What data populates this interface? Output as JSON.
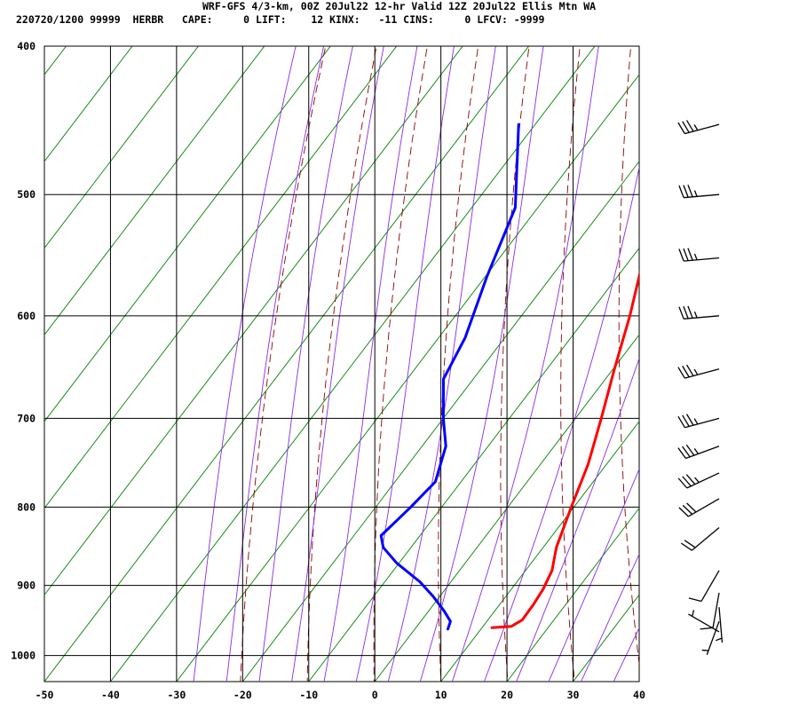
{
  "header": {
    "title": "WRF-GFS 4/3-km, 00Z 20Jul22 12-hr Valid 12Z 20Jul22 Ellis Mtn WA",
    "stats": "220720/1200 99999  HERBR   CAPE:     0 LIFT:    12 KINX:   -11 CINS:     0 LFCV: -9999"
  },
  "chart_data": {
    "type": "skew-t",
    "x_axis": {
      "ticks": [
        -50,
        -40,
        -30,
        -20,
        -10,
        0,
        10,
        20,
        30,
        40
      ],
      "range": [
        -50,
        40
      ]
    },
    "y_axis": {
      "ticks": [
        400,
        500,
        600,
        700,
        800,
        900,
        1000
      ],
      "range": [
        400,
        1040
      ],
      "scale": "log"
    },
    "grid": true,
    "colors": {
      "temperature": "#ff0000",
      "dewpoint": "#0000ff",
      "isotherm": "#008000",
      "dry_adiabat": "#8b0000",
      "moist_adiabat": "#8a2be2",
      "grid": "#000000"
    },
    "temperature": [
      {
        "p": 959,
        "t": 11.5
      },
      {
        "p": 957,
        "t": 14.3
      },
      {
        "p": 948,
        "t": 15.2
      },
      {
        "p": 925,
        "t": 15.1
      },
      {
        "p": 905,
        "t": 14.8
      },
      {
        "p": 880,
        "t": 14.0
      },
      {
        "p": 850,
        "t": 12.0
      },
      {
        "p": 800,
        "t": 9.6
      },
      {
        "p": 750,
        "t": 7.2
      },
      {
        "p": 700,
        "t": 3.9
      },
      {
        "p": 650,
        "t": 0.2
      },
      {
        "p": 600,
        "t": -3.6
      },
      {
        "p": 550,
        "t": -8.2
      },
      {
        "p": 500,
        "t": -13.8
      },
      {
        "p": 450,
        "t": -20.4
      }
    ],
    "dewpoint": [
      {
        "p": 961,
        "t": 5.0
      },
      {
        "p": 950,
        "t": 4.5
      },
      {
        "p": 935,
        "t": 2.3
      },
      {
        "p": 915,
        "t": -1.0
      },
      {
        "p": 895,
        "t": -4.7
      },
      {
        "p": 870,
        "t": -10.4
      },
      {
        "p": 850,
        "t": -14.2
      },
      {
        "p": 835,
        "t": -15.9
      },
      {
        "p": 800,
        "t": -14.7
      },
      {
        "p": 770,
        "t": -13.9
      },
      {
        "p": 730,
        "t": -16.4
      },
      {
        "p": 700,
        "t": -20.0
      },
      {
        "p": 660,
        "t": -24.5
      },
      {
        "p": 620,
        "t": -26.0
      },
      {
        "p": 565,
        "t": -29.8
      },
      {
        "p": 510,
        "t": -33.4
      },
      {
        "p": 450,
        "t": -42.5
      }
    ],
    "wind_barbs": [
      {
        "p": 450,
        "dir": 255,
        "speed": 35
      },
      {
        "p": 500,
        "dir": 265,
        "speed": 35
      },
      {
        "p": 550,
        "dir": 265,
        "speed": 35
      },
      {
        "p": 600,
        "dir": 265,
        "speed": 35
      },
      {
        "p": 650,
        "dir": 255,
        "speed": 35
      },
      {
        "p": 700,
        "dir": 255,
        "speed": 35
      },
      {
        "p": 730,
        "dir": 250,
        "speed": 35
      },
      {
        "p": 760,
        "dir": 245,
        "speed": 35
      },
      {
        "p": 790,
        "dir": 240,
        "speed": 30
      },
      {
        "p": 825,
        "dir": 230,
        "speed": 20
      },
      {
        "p": 880,
        "dir": 210,
        "speed": 10
      },
      {
        "p": 910,
        "dir": 190,
        "speed": 10
      },
      {
        "p": 930,
        "dir": 175,
        "speed": 5
      },
      {
        "p": 950,
        "dir": 200,
        "speed": 5
      },
      {
        "p": 965,
        "dir": 300,
        "speed": 5
      }
    ]
  }
}
